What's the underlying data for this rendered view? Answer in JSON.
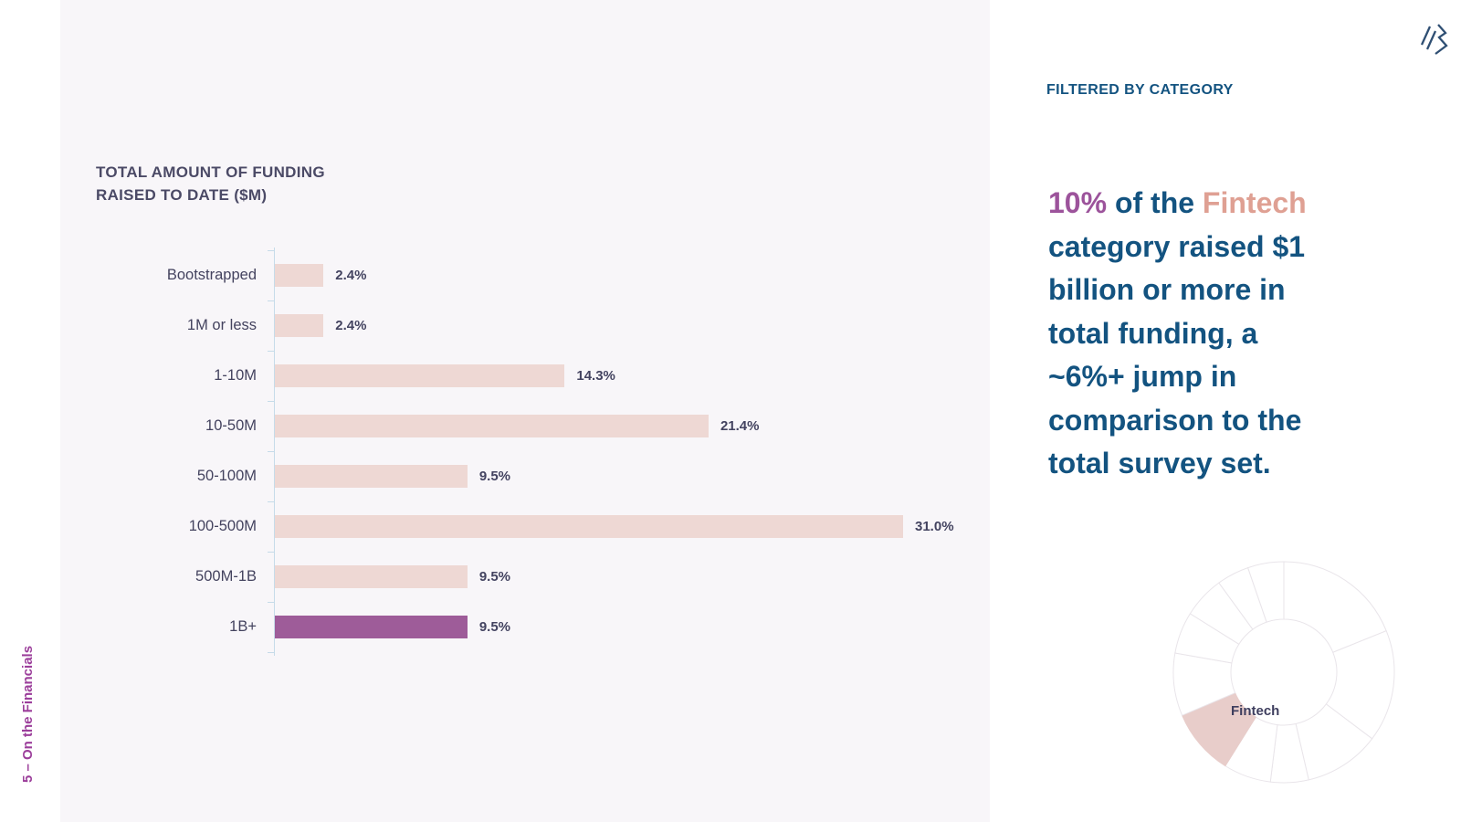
{
  "page": {
    "panel_background": "#f8f6f9",
    "background": "#ffffff"
  },
  "footer": {
    "label": "5 – On the Financials",
    "color": "#9c3f9b"
  },
  "logo": {
    "name": "triple-slash-logo",
    "color": "#2f4f73"
  },
  "chart": {
    "title_line1": "TOTAL AMOUNT OF FUNDING",
    "title_line2": "RAISED TO DATE ($M)",
    "bar_color": "#eed8d4",
    "highlight_color": "#9e5c99",
    "axis_color": "#c6dbe9"
  },
  "right_panel": {
    "heading": "FILTERED BY CATEGORY",
    "statement": {
      "lead": "10%",
      "mid": " of the ",
      "category": "Fintech",
      "rest": "\ncategory raised $1\nbillion or more in\ntotal funding, a\n~6%+ jump in\ncomparison to the\ntotal survey set."
    },
    "colors": {
      "text": "#135380",
      "lead": "#9c539b",
      "category": "#dfa093"
    }
  },
  "chart_data": [
    {
      "type": "bar",
      "orientation": "horizontal",
      "title": "TOTAL AMOUNT OF FUNDING RAISED TO DATE ($M)",
      "categories": [
        "Bootstrapped",
        "1M or less",
        "1-10M",
        "10-50M",
        "50-100M",
        "100-500M",
        "500M-1B",
        "1B+"
      ],
      "values": [
        2.4,
        2.4,
        14.3,
        21.4,
        9.5,
        31.0,
        9.5,
        9.5
      ],
      "value_labels": [
        "2.4%",
        "2.4%",
        "14.3%",
        "21.4%",
        "9.5%",
        "31.0%",
        "9.5%",
        "9.5%"
      ],
      "highlighted_index": 7,
      "highlighted_category": "1B+",
      "xlim": [
        0,
        31
      ],
      "grid": false,
      "legend": false
    },
    {
      "type": "donut",
      "label": "Fintech",
      "highlighted_value_pct": 10,
      "segments_degrees": [
        {
          "start": 0,
          "end": 68
        },
        {
          "start": 68,
          "end": 127
        },
        {
          "start": 127,
          "end": 167
        },
        {
          "start": 167,
          "end": 187
        },
        {
          "start": 187,
          "end": 212
        },
        {
          "start": 212,
          "end": 247,
          "highlighted": true
        },
        {
          "start": 247,
          "end": 280
        },
        {
          "start": 280,
          "end": 302
        },
        {
          "start": 302,
          "end": 324
        },
        {
          "start": 324,
          "end": 341
        },
        {
          "start": 341,
          "end": 360
        }
      ],
      "highlight_color": "#e8cdca",
      "stroke_color": "#e9e5ea",
      "fill_color": "#ffffff"
    }
  ]
}
